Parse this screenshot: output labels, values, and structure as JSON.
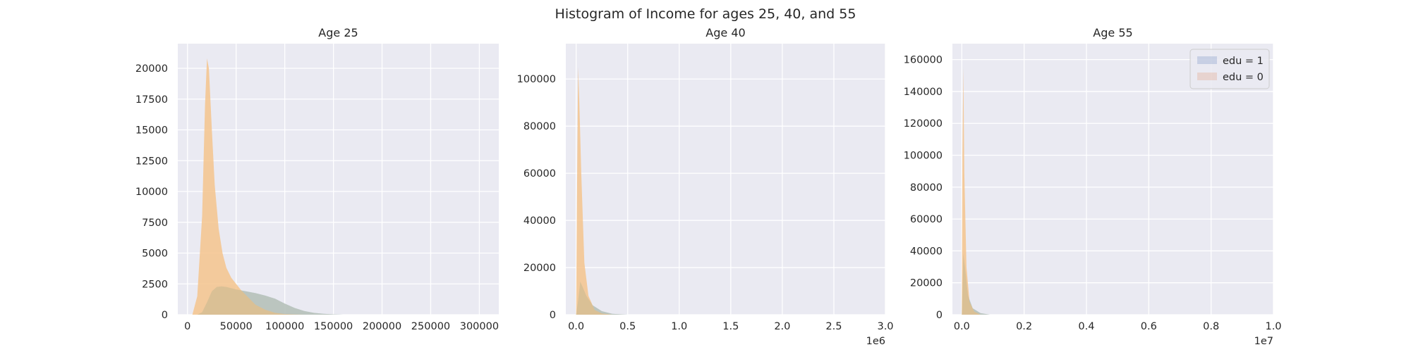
{
  "figure": {
    "title": "Histogram of Income for ages 25, 40, and 55"
  },
  "legend": {
    "placement": "upper-right of Age 55 panel",
    "entries": [
      {
        "label": "edu = 1",
        "color": "#4c72b0"
      },
      {
        "label": "edu = 0",
        "color": "#dd8452"
      }
    ]
  },
  "colors": {
    "edu1_fill": "#a9cbe6",
    "edu0_fill": "#f5c48d",
    "overlap_fill": "#c6b78e",
    "axes_bg": "#eaeaf2",
    "grid": "#ffffff"
  },
  "chart_data": [
    {
      "type": "histogram",
      "title": "Age 25",
      "xlabel": "",
      "ylabel": "",
      "grid": true,
      "xlim": [
        -10000,
        320000
      ],
      "ylim": [
        0,
        22000
      ],
      "xticks": [
        0,
        50000,
        100000,
        150000,
        200000,
        250000,
        300000
      ],
      "xtick_labels": [
        "0",
        "50000",
        "100000",
        "150000",
        "200000",
        "250000",
        "300000"
      ],
      "yticks": [
        0,
        2500,
        5000,
        7500,
        10000,
        12500,
        15000,
        17500,
        20000
      ],
      "ytick_labels": [
        "0",
        "2500",
        "5000",
        "7500",
        "10000",
        "12500",
        "15000",
        "17500",
        "20000"
      ],
      "offset_label": "",
      "series": [
        {
          "name": "edu = 0",
          "x": [
            5000,
            10000,
            15000,
            18000,
            20000,
            22000,
            25000,
            28000,
            32000,
            36000,
            40000,
            45000,
            50000,
            55000,
            60000,
            65000,
            70000,
            80000,
            90000,
            100000,
            110000,
            120000
          ],
          "y": [
            0,
            1500,
            8000,
            17000,
            20800,
            20000,
            15000,
            10500,
            7000,
            5000,
            3800,
            3000,
            2500,
            2000,
            1600,
            1200,
            800,
            400,
            150,
            50,
            20,
            0
          ]
        },
        {
          "name": "edu = 1",
          "x": [
            10000,
            15000,
            20000,
            25000,
            30000,
            35000,
            40000,
            45000,
            50000,
            60000,
            70000,
            80000,
            90000,
            100000,
            110000,
            120000,
            130000,
            140000,
            150000,
            160000
          ],
          "y": [
            0,
            200,
            1000,
            1900,
            2250,
            2300,
            2250,
            2150,
            2050,
            1900,
            1750,
            1550,
            1300,
            900,
            550,
            300,
            150,
            70,
            30,
            0
          ]
        }
      ]
    },
    {
      "type": "histogram",
      "title": "Age 40",
      "xlabel": "",
      "ylabel": "",
      "grid": true,
      "xlim": [
        -100000,
        3000000
      ],
      "ylim": [
        0,
        115000
      ],
      "xticks": [
        0,
        500000,
        1000000,
        1500000,
        2000000,
        2500000,
        3000000
      ],
      "xtick_labels": [
        "0.0",
        "0.5",
        "1.0",
        "1.5",
        "2.0",
        "2.5",
        "3.0"
      ],
      "yticks": [
        0,
        20000,
        40000,
        60000,
        80000,
        100000
      ],
      "ytick_labels": [
        "0",
        "20000",
        "40000",
        "60000",
        "80000",
        "100000"
      ],
      "offset_label": "1e6",
      "series": [
        {
          "name": "edu = 0",
          "x": [
            0,
            10000,
            20000,
            30000,
            50000,
            80000,
            120000,
            180000,
            250000,
            350000
          ],
          "y": [
            0,
            60000,
            105000,
            92000,
            60000,
            22000,
            8000,
            2000,
            500,
            0
          ]
        },
        {
          "name": "edu = 1",
          "x": [
            0,
            20000,
            40000,
            60000,
            100000,
            160000,
            250000,
            350000,
            500000
          ],
          "y": [
            0,
            6000,
            14000,
            12000,
            8000,
            4000,
            1500,
            400,
            0
          ]
        }
      ]
    },
    {
      "type": "histogram",
      "title": "Age 55",
      "xlabel": "",
      "ylabel": "",
      "grid": true,
      "xlim": [
        -300000,
        10000000
      ],
      "ylim": [
        0,
        170000
      ],
      "xticks": [
        0,
        2000000,
        4000000,
        6000000,
        8000000,
        10000000
      ],
      "xtick_labels": [
        "0.0",
        "0.2",
        "0.4",
        "0.6",
        "0.8",
        "1.0"
      ],
      "yticks": [
        0,
        20000,
        40000,
        60000,
        80000,
        100000,
        120000,
        140000,
        160000
      ],
      "ytick_labels": [
        "0",
        "20000",
        "40000",
        "60000",
        "80000",
        "100000",
        "120000",
        "140000",
        "160000"
      ],
      "offset_label": "1e7",
      "series": [
        {
          "name": "edu = 0",
          "x": [
            0,
            20000,
            50000,
            80000,
            150000,
            250000,
            400000,
            600000
          ],
          "y": [
            0,
            100000,
            155000,
            90000,
            30000,
            8000,
            2000,
            0
          ]
        },
        {
          "name": "edu = 1",
          "x": [
            0,
            50000,
            100000,
            200000,
            350000,
            600000,
            900000
          ],
          "y": [
            0,
            38000,
            30000,
            12000,
            4000,
            1000,
            0
          ]
        }
      ]
    }
  ]
}
